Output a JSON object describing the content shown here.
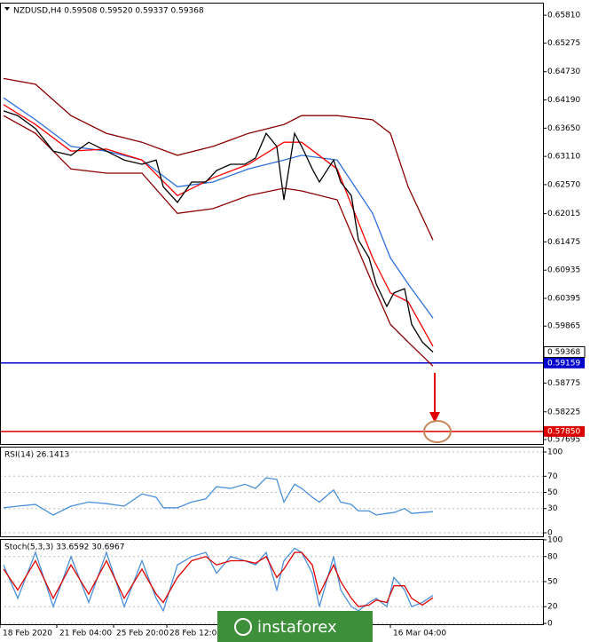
{
  "chart_data": [
    {
      "type": "line",
      "title": "NZDUSD,H4 0.59508 0.59520 0.59337 0.59368",
      "x": [
        1,
        5,
        10,
        15,
        20,
        25,
        30,
        35,
        40,
        44,
        46,
        50,
        54,
        58,
        61,
        65,
        69,
        72,
        75,
        78,
        80,
        83,
        85,
        88,
        90,
        94,
        96,
        99,
        101,
        104,
        106,
        109,
        111,
        114,
        116,
        119,
        122
      ],
      "xlim": [
        0,
        153
      ],
      "ylim": [
        0.5761,
        0.6605
      ],
      "yticks": [
        {
          "value": 0.6581,
          "label": "0.65810"
        },
        0.65275,
        {
          "value": 0.6473,
          "label": "0.64730"
        },
        {
          "value": 0.6419,
          "label": "0.64190"
        },
        {
          "value": 0.6365,
          "label": "0.63650"
        },
        {
          "value": 0.6311,
          "label": "0.63110"
        },
        {
          "value": 0.6257,
          "label": "0.62570"
        },
        0.62015,
        0.61475,
        0.60935,
        0.60395,
        0.59865,
        0.58775,
        0.58225,
        0.57695
      ],
      "series": [
        {
          "color": "#8b0000",
          "x": [
            1,
            10,
            20,
            30,
            40,
            50,
            60,
            70,
            80,
            85,
            95,
            105,
            110,
            115,
            122
          ],
          "values": [
            0.646,
            0.6449,
            0.6389,
            0.6355,
            0.6338,
            0.6313,
            0.633,
            0.6355,
            0.6372,
            0.6389,
            0.6389,
            0.6381,
            0.6355,
            0.6253,
            0.6151
          ]
        },
        {
          "color": "#8b0000",
          "x": [
            1,
            10,
            20,
            30,
            40,
            50,
            60,
            70,
            80,
            85,
            95,
            105,
            110,
            115,
            122
          ],
          "values": [
            0.6389,
            0.6355,
            0.6287,
            0.6279,
            0.6279,
            0.6202,
            0.6211,
            0.6236,
            0.625,
            0.6245,
            0.6228,
            0.6067,
            0.599,
            0.5956,
            0.591
          ]
        },
        {
          "color": "#2e6fd8",
          "x": [
            1,
            10,
            20,
            30,
            40,
            50,
            60,
            70,
            80,
            85,
            95,
            105,
            110,
            115,
            122
          ],
          "values": [
            0.6423,
            0.6381,
            0.633,
            0.6321,
            0.6304,
            0.6253,
            0.6262,
            0.6287,
            0.6304,
            0.6313,
            0.6304,
            0.6202,
            0.6117,
            0.6067,
            0.6002
          ]
        },
        {
          "color": "#ff0000",
          "x": [
            1,
            10,
            20,
            30,
            40,
            50,
            60,
            70,
            80,
            85,
            95,
            105,
            110,
            115,
            122
          ],
          "values": [
            0.641,
            0.6372,
            0.6321,
            0.6325,
            0.6304,
            0.6236,
            0.627,
            0.6296,
            0.6338,
            0.6338,
            0.6287,
            0.6117,
            0.605,
            0.6033,
            0.5948
          ]
        },
        {
          "color": "#000000",
          "values": [
            0.6398,
            0.6389,
            0.6364,
            0.6321,
            0.6313,
            0.6338,
            0.6321,
            0.6304,
            0.6296,
            0.6304,
            0.6253,
            0.6223,
            0.6262,
            0.6262,
            0.6284,
            0.6296,
            0.6296,
            0.6308,
            0.6355,
            0.633,
            0.6228,
            0.6355,
            0.633,
            0.6287,
            0.6262,
            0.6304,
            0.6262,
            0.6236,
            0.6151,
            0.6117,
            0.6067,
            0.6024,
            0.605,
            0.6058,
            0.599,
            0.5956,
            0.59368
          ]
        }
      ],
      "last_price": 0.59368,
      "levels": [
        {
          "value": 0.59159,
          "color": "#0000cc"
        },
        {
          "value": 0.5785,
          "label": "0.57850",
          "color": "#dd0000"
        }
      ]
    },
    {
      "type": "line",
      "title": "RSI(14) 26.1413",
      "x": [
        1,
        5,
        10,
        15,
        20,
        25,
        30,
        35,
        40,
        44,
        46,
        50,
        54,
        58,
        61,
        65,
        69,
        72,
        75,
        78,
        80,
        83,
        85,
        88,
        90,
        94,
        96,
        99,
        101,
        104,
        106,
        109,
        111,
        114,
        116,
        119,
        122
      ],
      "xlim": [
        0,
        153
      ],
      "ylim": [
        -5.5,
        106.6
      ],
      "yticks": [
        0,
        30,
        50,
        70,
        100
      ],
      "grid": true,
      "series": [
        {
          "color": "#4a90d9",
          "values": [
            31,
            33,
            35,
            22,
            33,
            38,
            36,
            33,
            48,
            44,
            31,
            31,
            38,
            42,
            57,
            55,
            60,
            55,
            68,
            66,
            38,
            60,
            55,
            44,
            38,
            53,
            38,
            35,
            27,
            27,
            22,
            24,
            25,
            30,
            24,
            25,
            26.14
          ]
        }
      ]
    },
    {
      "type": "line",
      "title": "Stoch(5,3,3) 33.6592 30.6967",
      "x": [
        1,
        5,
        10,
        15,
        20,
        25,
        30,
        35,
        40,
        44,
        46,
        50,
        54,
        58,
        61,
        65,
        69,
        72,
        75,
        78,
        80,
        83,
        85,
        88,
        90,
        94,
        96,
        99,
        101,
        104,
        106,
        109,
        111,
        114,
        116,
        119,
        122
      ],
      "xlim": [
        0,
        153
      ],
      "ylim": [
        -1,
        101
      ],
      "yticks": [
        0,
        20,
        50,
        80,
        100
      ],
      "grid": true,
      "xticks": [
        {
          "value": 0,
          "label": "18 Feb 2020"
        },
        {
          "value": 16,
          "label": "21 Feb 04:00"
        },
        {
          "value": 32,
          "label": "25 Feb 20:00"
        },
        {
          "value": 47,
          "label": "28 Feb 12:00"
        },
        {
          "value": 110,
          "label": "16 Mar 04:00"
        }
      ],
      "series": [
        {
          "color": "#4a90d9",
          "values": [
            70,
            30,
            85,
            20,
            80,
            25,
            85,
            20,
            75,
            30,
            15,
            70,
            80,
            85,
            60,
            80,
            75,
            70,
            85,
            40,
            75,
            90,
            85,
            60,
            20,
            80,
            40,
            20,
            15,
            25,
            30,
            20,
            55,
            40,
            20,
            25,
            33.66
          ]
        },
        {
          "color": "#e00000",
          "values": [
            65,
            40,
            75,
            30,
            70,
            35,
            75,
            30,
            65,
            35,
            25,
            55,
            75,
            80,
            70,
            75,
            75,
            72,
            80,
            55,
            65,
            85,
            85,
            70,
            35,
            70,
            50,
            30,
            20,
            22,
            28,
            25,
            45,
            45,
            30,
            22,
            30.7
          ]
        }
      ]
    }
  ],
  "watermark": "instaforex"
}
